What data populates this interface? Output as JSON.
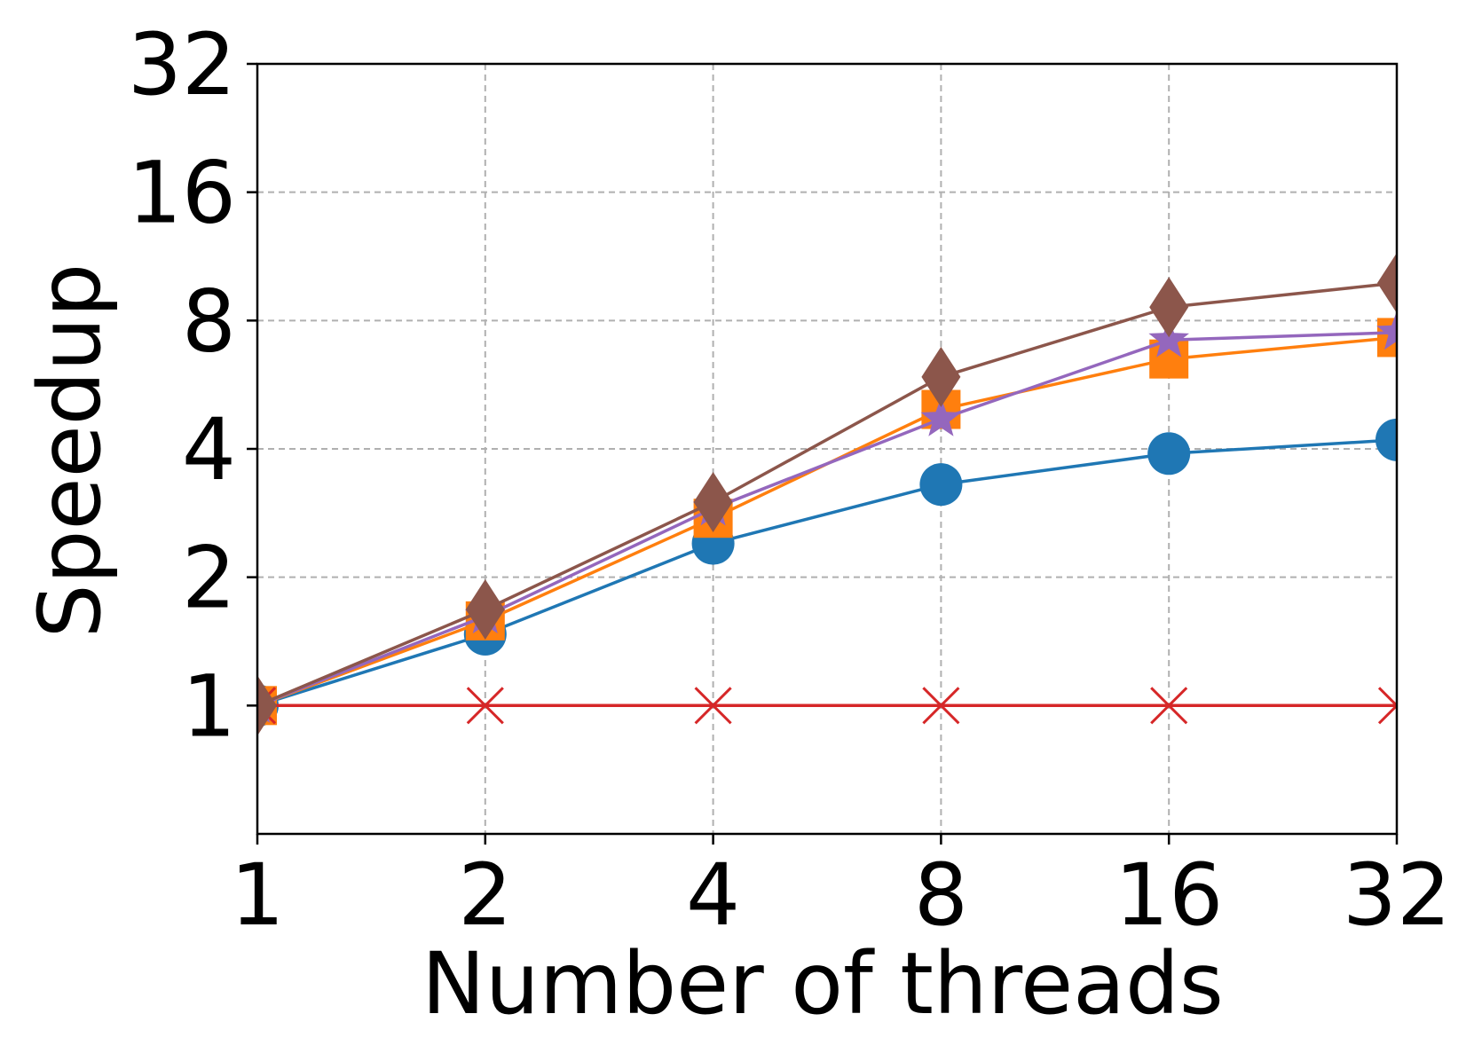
{
  "chart_data": {
    "type": "line",
    "xlabel": "Number of threads",
    "ylabel": "Speedup",
    "x": [
      1,
      2,
      4,
      8,
      16,
      32
    ],
    "x_tick_labels": [
      "1",
      "2",
      "4",
      "8",
      "16",
      "32"
    ],
    "y_ticks": [
      1,
      2,
      4,
      8,
      16,
      32
    ],
    "y_tick_labels": [
      "1",
      "2",
      "4",
      "8",
      "16",
      "32"
    ],
    "xlim": [
      1,
      32
    ],
    "ylim": [
      0.5,
      32
    ],
    "x_scale": "log2",
    "y_scale": "log2",
    "grid": true,
    "grid_style": "dashed",
    "series": [
      {
        "values": [
          1.0,
          1.47,
          2.4,
          3.3,
          3.9,
          4.2
        ],
        "color": "#1f77b4",
        "marker": "circle"
      },
      {
        "values": [
          1.0,
          1.58,
          2.75,
          4.95,
          6.5,
          7.3
        ],
        "color": "#ff7f0e",
        "marker": "square"
      },
      {
        "values": [
          1.0,
          1.0,
          1.0,
          1.0,
          1.0,
          1.0
        ],
        "color": "#d62728",
        "marker": "x"
      },
      {
        "values": [
          1.0,
          1.62,
          2.9,
          4.7,
          7.2,
          7.5
        ],
        "color": "#9467bd",
        "marker": "star"
      },
      {
        "values": [
          1.0,
          1.68,
          3.0,
          5.9,
          8.6,
          9.8
        ],
        "color": "#8c564b",
        "marker": "diamond"
      }
    ]
  }
}
